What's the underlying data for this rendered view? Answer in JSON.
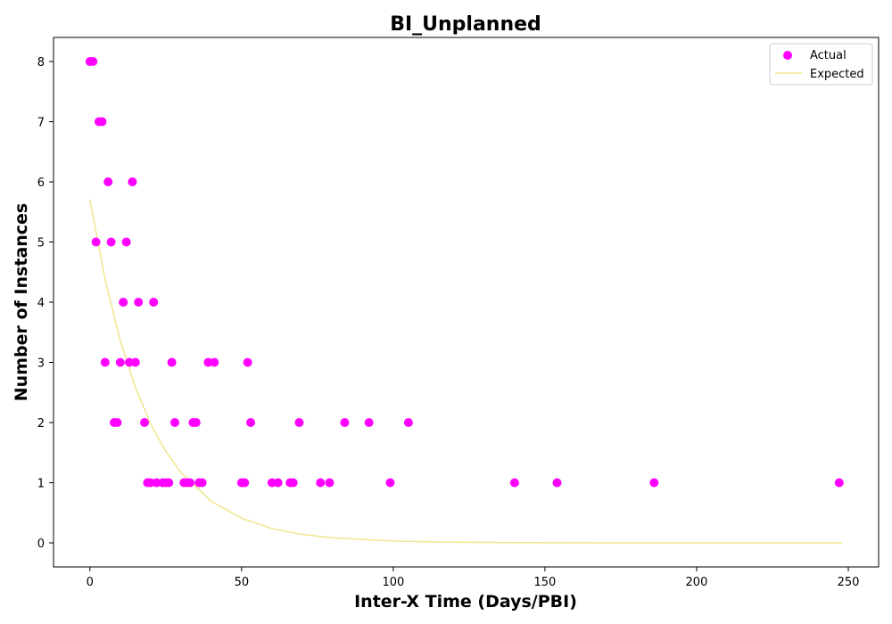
{
  "chart_data": {
    "type": "scatter",
    "title": "BI_Unplanned",
    "xlabel": "Inter-X Time (Days/PBI)",
    "ylabel": "Number of Instances",
    "xlim": [
      -12,
      260
    ],
    "ylim": [
      -0.4,
      8.4
    ],
    "xticks": [
      0,
      50,
      100,
      150,
      200,
      250
    ],
    "yticks": [
      0,
      1,
      2,
      3,
      4,
      5,
      6,
      7,
      8
    ],
    "grid": false,
    "legend_position": "top-right",
    "series": [
      {
        "name": "Actual",
        "kind": "scatter",
        "color": "#ff00ff",
        "points": [
          [
            0,
            8
          ],
          [
            1,
            8
          ],
          [
            3,
            7
          ],
          [
            4,
            7
          ],
          [
            6,
            6
          ],
          [
            14,
            6
          ],
          [
            2,
            5
          ],
          [
            7,
            5
          ],
          [
            12,
            5
          ],
          [
            11,
            4
          ],
          [
            16,
            4
          ],
          [
            21,
            4
          ],
          [
            5,
            3
          ],
          [
            10,
            3
          ],
          [
            13,
            3
          ],
          [
            15,
            3
          ],
          [
            27,
            3
          ],
          [
            39,
            3
          ],
          [
            41,
            3
          ],
          [
            52,
            3
          ],
          [
            8,
            2
          ],
          [
            9,
            2
          ],
          [
            18,
            2
          ],
          [
            28,
            2
          ],
          [
            34,
            2
          ],
          [
            35,
            2
          ],
          [
            53,
            2
          ],
          [
            69,
            2
          ],
          [
            84,
            2
          ],
          [
            92,
            2
          ],
          [
            105,
            2
          ],
          [
            19,
            1
          ],
          [
            20,
            1
          ],
          [
            22,
            1
          ],
          [
            24,
            1
          ],
          [
            25,
            1
          ],
          [
            26,
            1
          ],
          [
            31,
            1
          ],
          [
            32,
            1
          ],
          [
            33,
            1
          ],
          [
            36,
            1
          ],
          [
            37,
            1
          ],
          [
            50,
            1
          ],
          [
            51,
            1
          ],
          [
            60,
            1
          ],
          [
            62,
            1
          ],
          [
            66,
            1
          ],
          [
            67,
            1
          ],
          [
            76,
            1
          ],
          [
            79,
            1
          ],
          [
            99,
            1
          ],
          [
            140,
            1
          ],
          [
            154,
            1
          ],
          [
            186,
            1
          ],
          [
            247,
            1
          ]
        ]
      },
      {
        "name": "Expected",
        "kind": "line",
        "color": "#f0e68c",
        "x": [
          0,
          5,
          10,
          15,
          20,
          25,
          30,
          40,
          50,
          60,
          70,
          80,
          100,
          120,
          150,
          200,
          248
        ],
        "y": [
          5.7,
          4.38,
          3.36,
          2.58,
          1.98,
          1.52,
          1.17,
          0.69,
          0.41,
          0.24,
          0.14,
          0.084,
          0.03,
          0.011,
          0.002,
          0.0002,
          0.0
        ]
      }
    ]
  }
}
